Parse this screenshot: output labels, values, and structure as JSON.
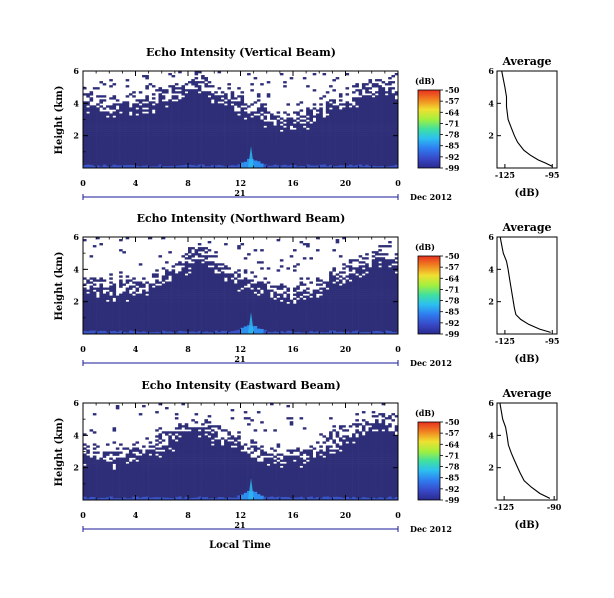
{
  "figure": {
    "date_label": "Dec 2012",
    "day_label": "21",
    "xlabel": "Local Time",
    "colorbar_unit": "(dB)",
    "colorbar_ticks": [
      "-50",
      "-57",
      "-64",
      "-71",
      "-78",
      "-85",
      "-92",
      "-99"
    ],
    "profile_title": "Average",
    "profile_xlabel": "(dB)"
  },
  "chart_data": [
    {
      "type": "heatmap",
      "title": "Echo Intensity (Vertical Beam)",
      "ylabel": "Height (km)",
      "x_ticks": [
        "0",
        "4",
        "8",
        "12",
        "16",
        "20",
        "0"
      ],
      "y_ticks": [
        "6",
        "4",
        "2"
      ],
      "xlim": [
        0,
        24
      ],
      "ylim": [
        0,
        6
      ],
      "cloud_top_km": [
        4.2,
        4.0,
        3.8,
        3.9,
        4.0,
        4.1,
        4.4,
        4.6,
        5.0,
        5.3,
        4.8,
        4.4,
        4.0,
        3.6,
        3.3,
        3.0,
        2.9,
        3.2,
        3.5,
        3.8,
        4.2,
        4.6,
        5.0,
        5.2,
        4.8
      ],
      "colorbar_range_db": [
        -99,
        -50
      ]
    },
    {
      "type": "heatmap",
      "title": "Echo Intensity (Northward Beam)",
      "ylabel": "Height (km)",
      "x_ticks": [
        "0",
        "4",
        "8",
        "12",
        "16",
        "20",
        "0"
      ],
      "y_ticks": [
        "6",
        "4",
        "2"
      ],
      "xlim": [
        0,
        24
      ],
      "ylim": [
        0,
        6
      ],
      "cloud_top_km": [
        3.2,
        3.0,
        2.8,
        2.9,
        3.0,
        3.1,
        3.6,
        4.0,
        4.6,
        5.0,
        4.5,
        4.0,
        3.5,
        3.0,
        2.8,
        2.6,
        2.5,
        2.7,
        3.0,
        3.4,
        3.8,
        4.3,
        4.8,
        5.0,
        4.6
      ],
      "colorbar_range_db": [
        -99,
        -50
      ]
    },
    {
      "type": "heatmap",
      "title": "Echo Intensity (Eastward Beam)",
      "ylabel": "Height (km)",
      "x_ticks": [
        "0",
        "4",
        "8",
        "12",
        "16",
        "20",
        "0"
      ],
      "y_ticks": [
        "6",
        "4",
        "2"
      ],
      "xlim": [
        0,
        24
      ],
      "ylim": [
        0,
        6
      ],
      "cloud_top_km": [
        3.0,
        2.8,
        2.6,
        2.8,
        2.9,
        3.1,
        3.5,
        4.0,
        4.4,
        4.6,
        4.2,
        3.8,
        3.4,
        3.0,
        2.8,
        2.7,
        2.7,
        2.9,
        3.2,
        3.6,
        4.0,
        4.4,
        4.7,
        4.9,
        4.5
      ],
      "colorbar_range_db": [
        -99,
        -50
      ]
    },
    {
      "type": "line",
      "title": "Average",
      "xlabel": "(dB)",
      "x_ticks": [
        "-125",
        "-95"
      ],
      "y_ticks": [
        "6",
        "4",
        "2"
      ],
      "xlim": [
        -130,
        -92
      ],
      "ylim": [
        0,
        6
      ],
      "x": [
        -127,
        -126,
        -125,
        -124,
        -124,
        -123,
        -121,
        -119,
        -117,
        -113,
        -109,
        -104,
        -99,
        -95
      ],
      "y": [
        6.0,
        5.5,
        5.0,
        4.4,
        3.8,
        3.0,
        2.5,
        2.0,
        1.6,
        1.1,
        0.8,
        0.5,
        0.3,
        0.1
      ]
    },
    {
      "type": "line",
      "title": "Average",
      "xlabel": "(dB)",
      "x_ticks": [
        "-125",
        "-95"
      ],
      "y_ticks": [
        "6",
        "4",
        "2"
      ],
      "xlim": [
        -130,
        -92
      ],
      "ylim": [
        0,
        6
      ],
      "x": [
        -128,
        -127,
        -126,
        -124,
        -123,
        -122,
        -121,
        -120,
        -119,
        -118,
        -115,
        -110,
        -103,
        -96
      ],
      "y": [
        6.0,
        5.5,
        5.0,
        4.5,
        4.0,
        3.4,
        2.8,
        2.2,
        1.6,
        1.2,
        0.9,
        0.6,
        0.3,
        0.1
      ]
    },
    {
      "type": "line",
      "title": "Average",
      "xlabel": "(dB)",
      "x_ticks": [
        "-125",
        "-90"
      ],
      "y_ticks": [
        "6",
        "4",
        "2"
      ],
      "xlim": [
        -130,
        -88
      ],
      "ylim": [
        0,
        6
      ],
      "x": [
        -128,
        -127,
        -126,
        -124,
        -123,
        -122,
        -120,
        -118,
        -116,
        -114,
        -111,
        -106,
        -100,
        -93
      ],
      "y": [
        6.0,
        5.5,
        5.0,
        4.5,
        4.0,
        3.4,
        2.9,
        2.5,
        2.1,
        1.7,
        1.2,
        0.8,
        0.4,
        0.1
      ]
    }
  ]
}
